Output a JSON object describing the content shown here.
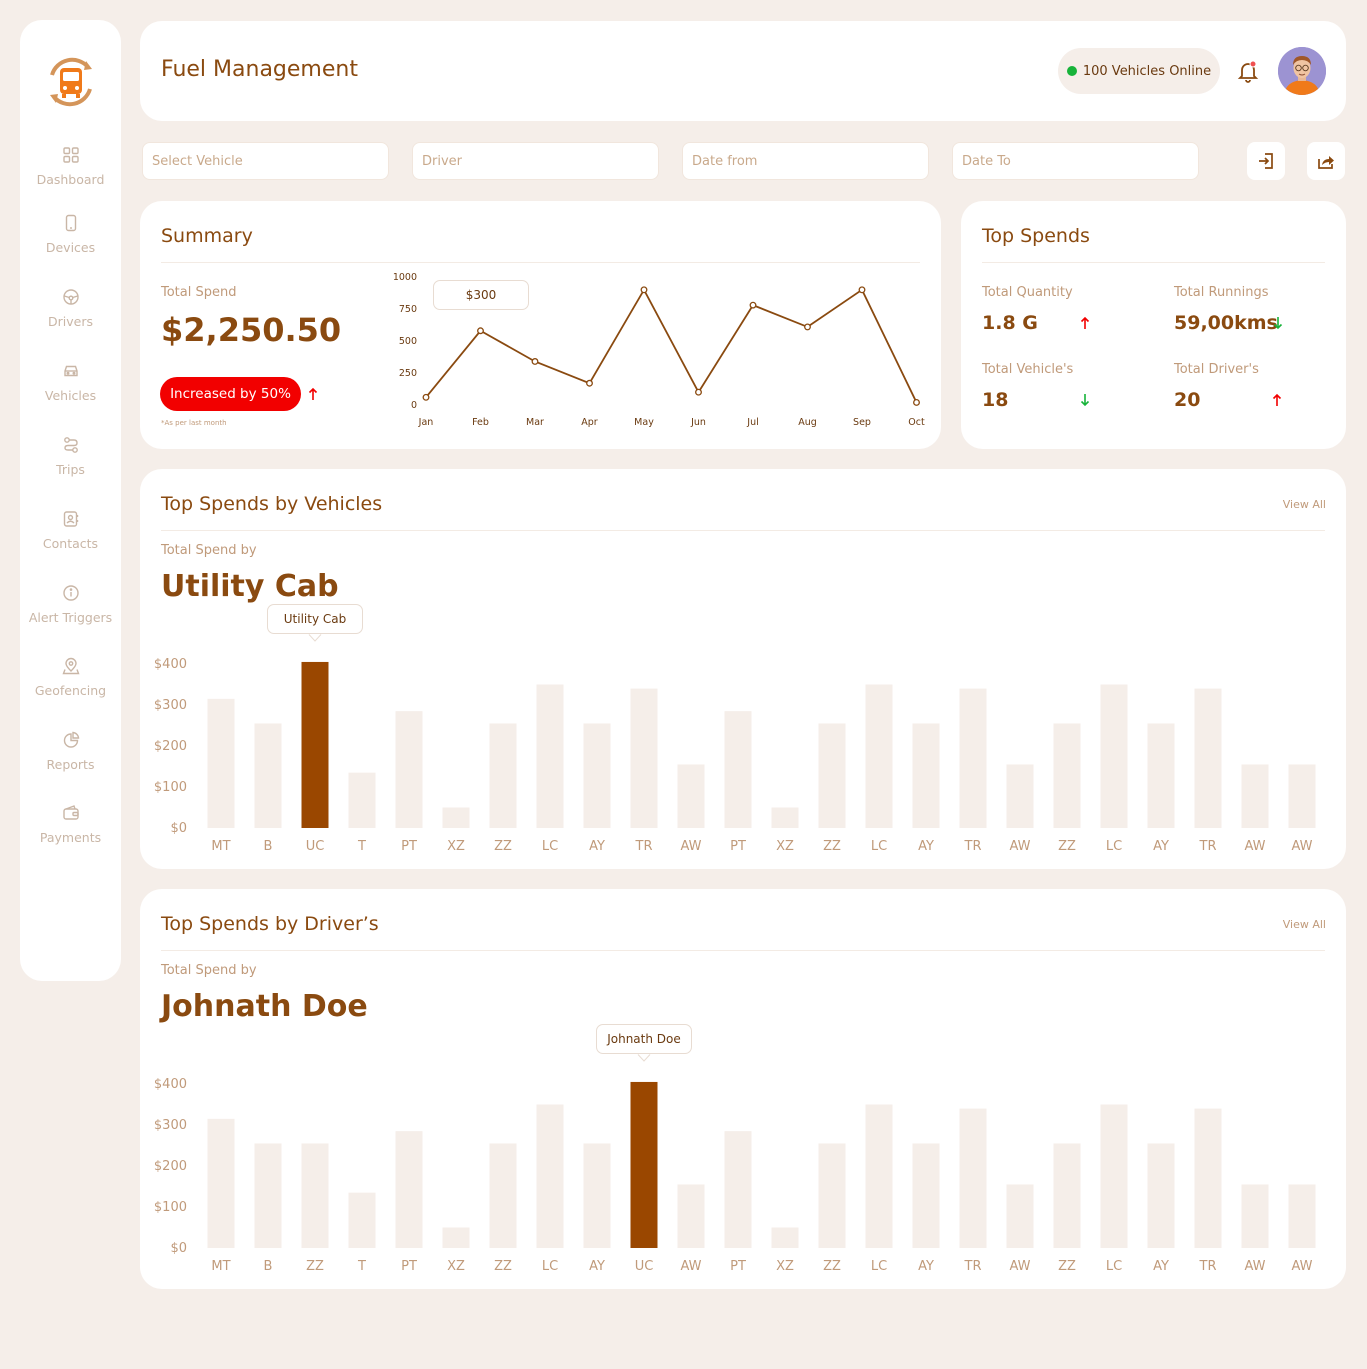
{
  "header": {
    "title": "Fuel Management",
    "online": "100 Vehicles Online"
  },
  "sidebar": {
    "items": [
      {
        "label": "Dashboard",
        "icon": "dashboard-icon"
      },
      {
        "label": "Devices",
        "icon": "device-icon"
      },
      {
        "label": "Drivers",
        "icon": "steering-wheel-icon"
      },
      {
        "label": "Vehicles",
        "icon": "car-icon"
      },
      {
        "label": "Trips",
        "icon": "route-icon"
      },
      {
        "label": "Contacts",
        "icon": "contacts-icon"
      },
      {
        "label": "Alert Triggers",
        "icon": "info-icon"
      },
      {
        "label": "Geofencing",
        "icon": "location-pin-icon"
      },
      {
        "label": "Reports",
        "icon": "pie-chart-icon"
      },
      {
        "label": "Payments",
        "icon": "wallet-icon"
      }
    ]
  },
  "filters": {
    "vehicle_placeholder": "Select Vehicle",
    "driver_placeholder": "Driver",
    "date_from_placeholder": "Date from",
    "date_to_placeholder": "Date To"
  },
  "summary": {
    "title": "Summary",
    "total_label": "Total Spend",
    "total_value": "$2,250.50",
    "increase_label": "Increased by 50%",
    "note": "*As per last month",
    "tooltip": "$300"
  },
  "top_spends": {
    "title": "Top Spends",
    "stats": [
      {
        "label": "Total Quantity",
        "value": "1.8 G",
        "trend": "up"
      },
      {
        "label": "Total Runnings",
        "value": "59,00kms",
        "trend": "down"
      },
      {
        "label": "Total Vehicle's",
        "value": "18",
        "trend": "down"
      },
      {
        "label": "Total Driver's",
        "value": "20",
        "trend": "up"
      }
    ]
  },
  "vehicles_section": {
    "title": "Top Spends by Vehicles",
    "view_all": "View All",
    "label": "Total Spend by",
    "highlight": "Utility Cab",
    "tooltip": "Utility Cab"
  },
  "drivers_section": {
    "title": "Top Spends by Driver’s",
    "view_all": "View All",
    "label": "Total Spend by",
    "highlight": "Johnath Doe",
    "tooltip": "Johnath Doe"
  },
  "colors": {
    "brand": "#8a4a10",
    "bar_highlight": "#9a4700",
    "bar_muted": "#f5eee9",
    "accent_red": "#f20000",
    "online_green": "#17b33a",
    "down_green": "#17b33a"
  },
  "chart_data": [
    {
      "type": "line",
      "x": [
        "Jan",
        "Feb",
        "Mar",
        "Apr",
        "May",
        "Jun",
        "Jul",
        "Aug",
        "Sep",
        "Oct"
      ],
      "series": [
        {
          "values": [
            60,
            580,
            340,
            170,
            900,
            100,
            780,
            610,
            900,
            20
          ]
        }
      ],
      "yticks": [
        0,
        250,
        500,
        750,
        1000
      ],
      "ylim": [
        0,
        1000
      ],
      "highlight_index": 1
    },
    {
      "type": "bar",
      "categories": [
        "MT",
        "B",
        "UC",
        "T",
        "PT",
        "XZ",
        "ZZ",
        "LC",
        "AY",
        "TR",
        "AW",
        "PT",
        "XZ",
        "ZZ",
        "LC",
        "AY",
        "TR",
        "AW",
        "ZZ",
        "LC",
        "AY",
        "TR",
        "AW",
        "AW"
      ],
      "values": [
        315,
        255,
        405,
        135,
        285,
        50,
        255,
        350,
        255,
        340,
        155,
        285,
        50,
        255,
        350,
        255,
        340,
        155,
        255,
        350,
        255,
        340,
        155,
        155
      ],
      "yticks": [
        "$0",
        "$100",
        "$200",
        "$300",
        "$400"
      ],
      "ylim": [
        0,
        400
      ],
      "highlight_index": 2
    },
    {
      "type": "bar",
      "categories": [
        "MT",
        "B",
        "ZZ",
        "T",
        "PT",
        "XZ",
        "ZZ",
        "LC",
        "AY",
        "UC",
        "AW",
        "PT",
        "XZ",
        "ZZ",
        "LC",
        "AY",
        "TR",
        "AW",
        "ZZ",
        "LC",
        "AY",
        "TR",
        "AW",
        "AW"
      ],
      "values": [
        315,
        255,
        255,
        135,
        285,
        50,
        255,
        350,
        255,
        405,
        155,
        285,
        50,
        255,
        350,
        255,
        340,
        155,
        255,
        350,
        255,
        340,
        155,
        155
      ],
      "yticks": [
        "$0",
        "$100",
        "$200",
        "$300",
        "$400"
      ],
      "ylim": [
        0,
        400
      ],
      "highlight_index": 9
    }
  ]
}
